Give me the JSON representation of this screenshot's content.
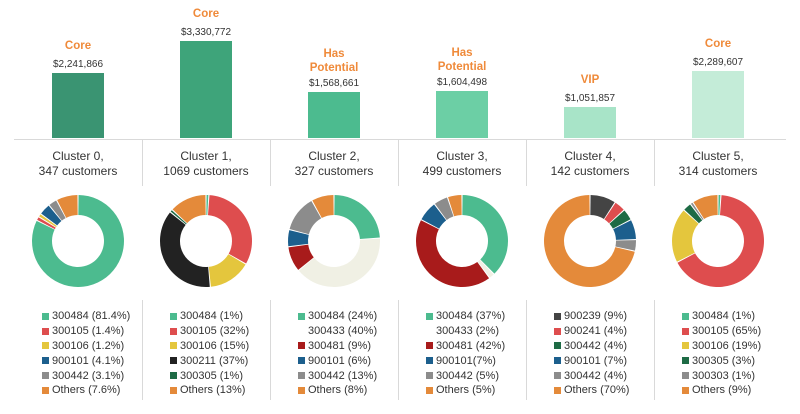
{
  "chart_data": {
    "type": "bar",
    "title": "",
    "xlabel": "",
    "ylabel": "",
    "ylim": [
      0,
      3330772
    ],
    "categories": [
      "Cluster 0",
      "Cluster 1",
      "Cluster 2",
      "Cluster 3",
      "Cluster 4",
      "Cluster 5"
    ],
    "values": [
      2241866,
      3330772,
      1568661,
      1604498,
      1051857,
      2289607
    ],
    "clusters": [
      {
        "segment": "Core",
        "amount": "$2,241,866",
        "value": 2241866,
        "color": "#3a9472",
        "name": "Cluster 0,",
        "customers": "347 customers",
        "pie": [
          {
            "label": "300484 (81.4%)",
            "value": 81.4,
            "color": "#4cbb8f"
          },
          {
            "label": "300105 (1.4%)",
            "value": 1.4,
            "color": "#de4d4e"
          },
          {
            "label": "300106  (1.2%)",
            "value": 1.2,
            "color": "#e4c63d"
          },
          {
            "label": "900101 (4.1%)",
            "value": 4.1,
            "color": "#1c5f8d"
          },
          {
            "label": "300442 (3.1%)",
            "value": 3.1,
            "color": "#8c8c8c"
          },
          {
            "label": "Others (7.6%)",
            "value": 7.6,
            "color": "#e48a3a"
          }
        ]
      },
      {
        "segment": "Core",
        "amount": "$3,330,772",
        "value": 3330772,
        "color": "#3ea47a",
        "name": "Cluster 1,",
        "customers": "1069 customers",
        "pie": [
          {
            "label": "300484 (1%)",
            "value": 1,
            "color": "#4cbb8f"
          },
          {
            "label": "300105 (32%)",
            "value": 32,
            "color": "#de4d4e"
          },
          {
            "label": "300106 (15%)",
            "value": 15,
            "color": "#e4c63d"
          },
          {
            "label": "300211 (37%)",
            "value": 37,
            "color": "#222222"
          },
          {
            "label": "300305 (1%)",
            "value": 1,
            "color": "#1e6b45"
          },
          {
            "label": "Others (13%)",
            "value": 13,
            "color": "#e48a3a"
          }
        ]
      },
      {
        "segment": "Has Potential",
        "amount": "$1,568,661",
        "value": 1568661,
        "color": "#4cbb8f",
        "name": "Cluster 2,",
        "customers": "327 customers",
        "pie": [
          {
            "label": "300484 (24%)",
            "value": 24,
            "color": "#4cbb8f"
          },
          {
            "label": "300433 (40%)",
            "value": 40,
            "color": "#f0f0e4"
          },
          {
            "label": "300481 (9%)",
            "value": 9,
            "color": "#a81b1b"
          },
          {
            "label": "900101 (6%)",
            "value": 6,
            "color": "#1c5f8d"
          },
          {
            "label": "300442 (13%)",
            "value": 13,
            "color": "#8c8c8c"
          },
          {
            "label": "Others (8%)",
            "value": 8,
            "color": "#e48a3a"
          }
        ]
      },
      {
        "segment": "Has Potential",
        "amount": "$1,604,498",
        "value": 1604498,
        "color": "#6ccfa5",
        "name": "Cluster 3,",
        "customers": "499 customers",
        "pie": [
          {
            "label": "300484  (37%)",
            "value": 37,
            "color": "#4cbb8f"
          },
          {
            "label": "300433 (2%)",
            "value": 2,
            "color": "#f0f0e4"
          },
          {
            "label": "300481 (42%)",
            "value": 42,
            "color": "#a81b1b"
          },
          {
            "label": "900101(7%)",
            "value": 7,
            "color": "#1c5f8d"
          },
          {
            "label": "300442 (5%)",
            "value": 5,
            "color": "#8c8c8c"
          },
          {
            "label": "Others (5%)",
            "value": 5,
            "color": "#e48a3a"
          }
        ]
      },
      {
        "segment": "VIP",
        "amount": "$1,051,857",
        "value": 1051857,
        "color": "#a8e4c8",
        "name": "Cluster 4,",
        "customers": "142 customers",
        "pie": [
          {
            "label": "900239 (9%)",
            "value": 9,
            "color": "#444444"
          },
          {
            "label": "900241 (4%)",
            "value": 4,
            "color": "#de4d4e"
          },
          {
            "label": "300442 (4%)",
            "value": 4,
            "color": "#1e6b45"
          },
          {
            "label": "900101 (7%)",
            "value": 7,
            "color": "#1c5f8d"
          },
          {
            "label": "300442 (4%)",
            "value": 4,
            "color": "#8c8c8c"
          },
          {
            "label": "Others (70%)",
            "value": 70,
            "color": "#e48a3a"
          }
        ]
      },
      {
        "segment": "Core",
        "amount": "$2,289,607",
        "value": 2289607,
        "color": "#c4ecd8",
        "name": "Cluster 5,",
        "customers": "314 customers",
        "pie": [
          {
            "label": "300484 (1%)",
            "value": 1,
            "color": "#4cbb8f"
          },
          {
            "label": "300105 (65%)",
            "value": 65,
            "color": "#de4d4e"
          },
          {
            "label": "300106 (19%)",
            "value": 19,
            "color": "#e4c63d"
          },
          {
            "label": "300305 (3%)",
            "value": 3,
            "color": "#1e6b45"
          },
          {
            "label": "300303 (1%)",
            "value": 1,
            "color": "#8c8c8c"
          },
          {
            "label": "Others (9%)",
            "value": 9,
            "color": "#e48a3a"
          }
        ]
      }
    ]
  }
}
